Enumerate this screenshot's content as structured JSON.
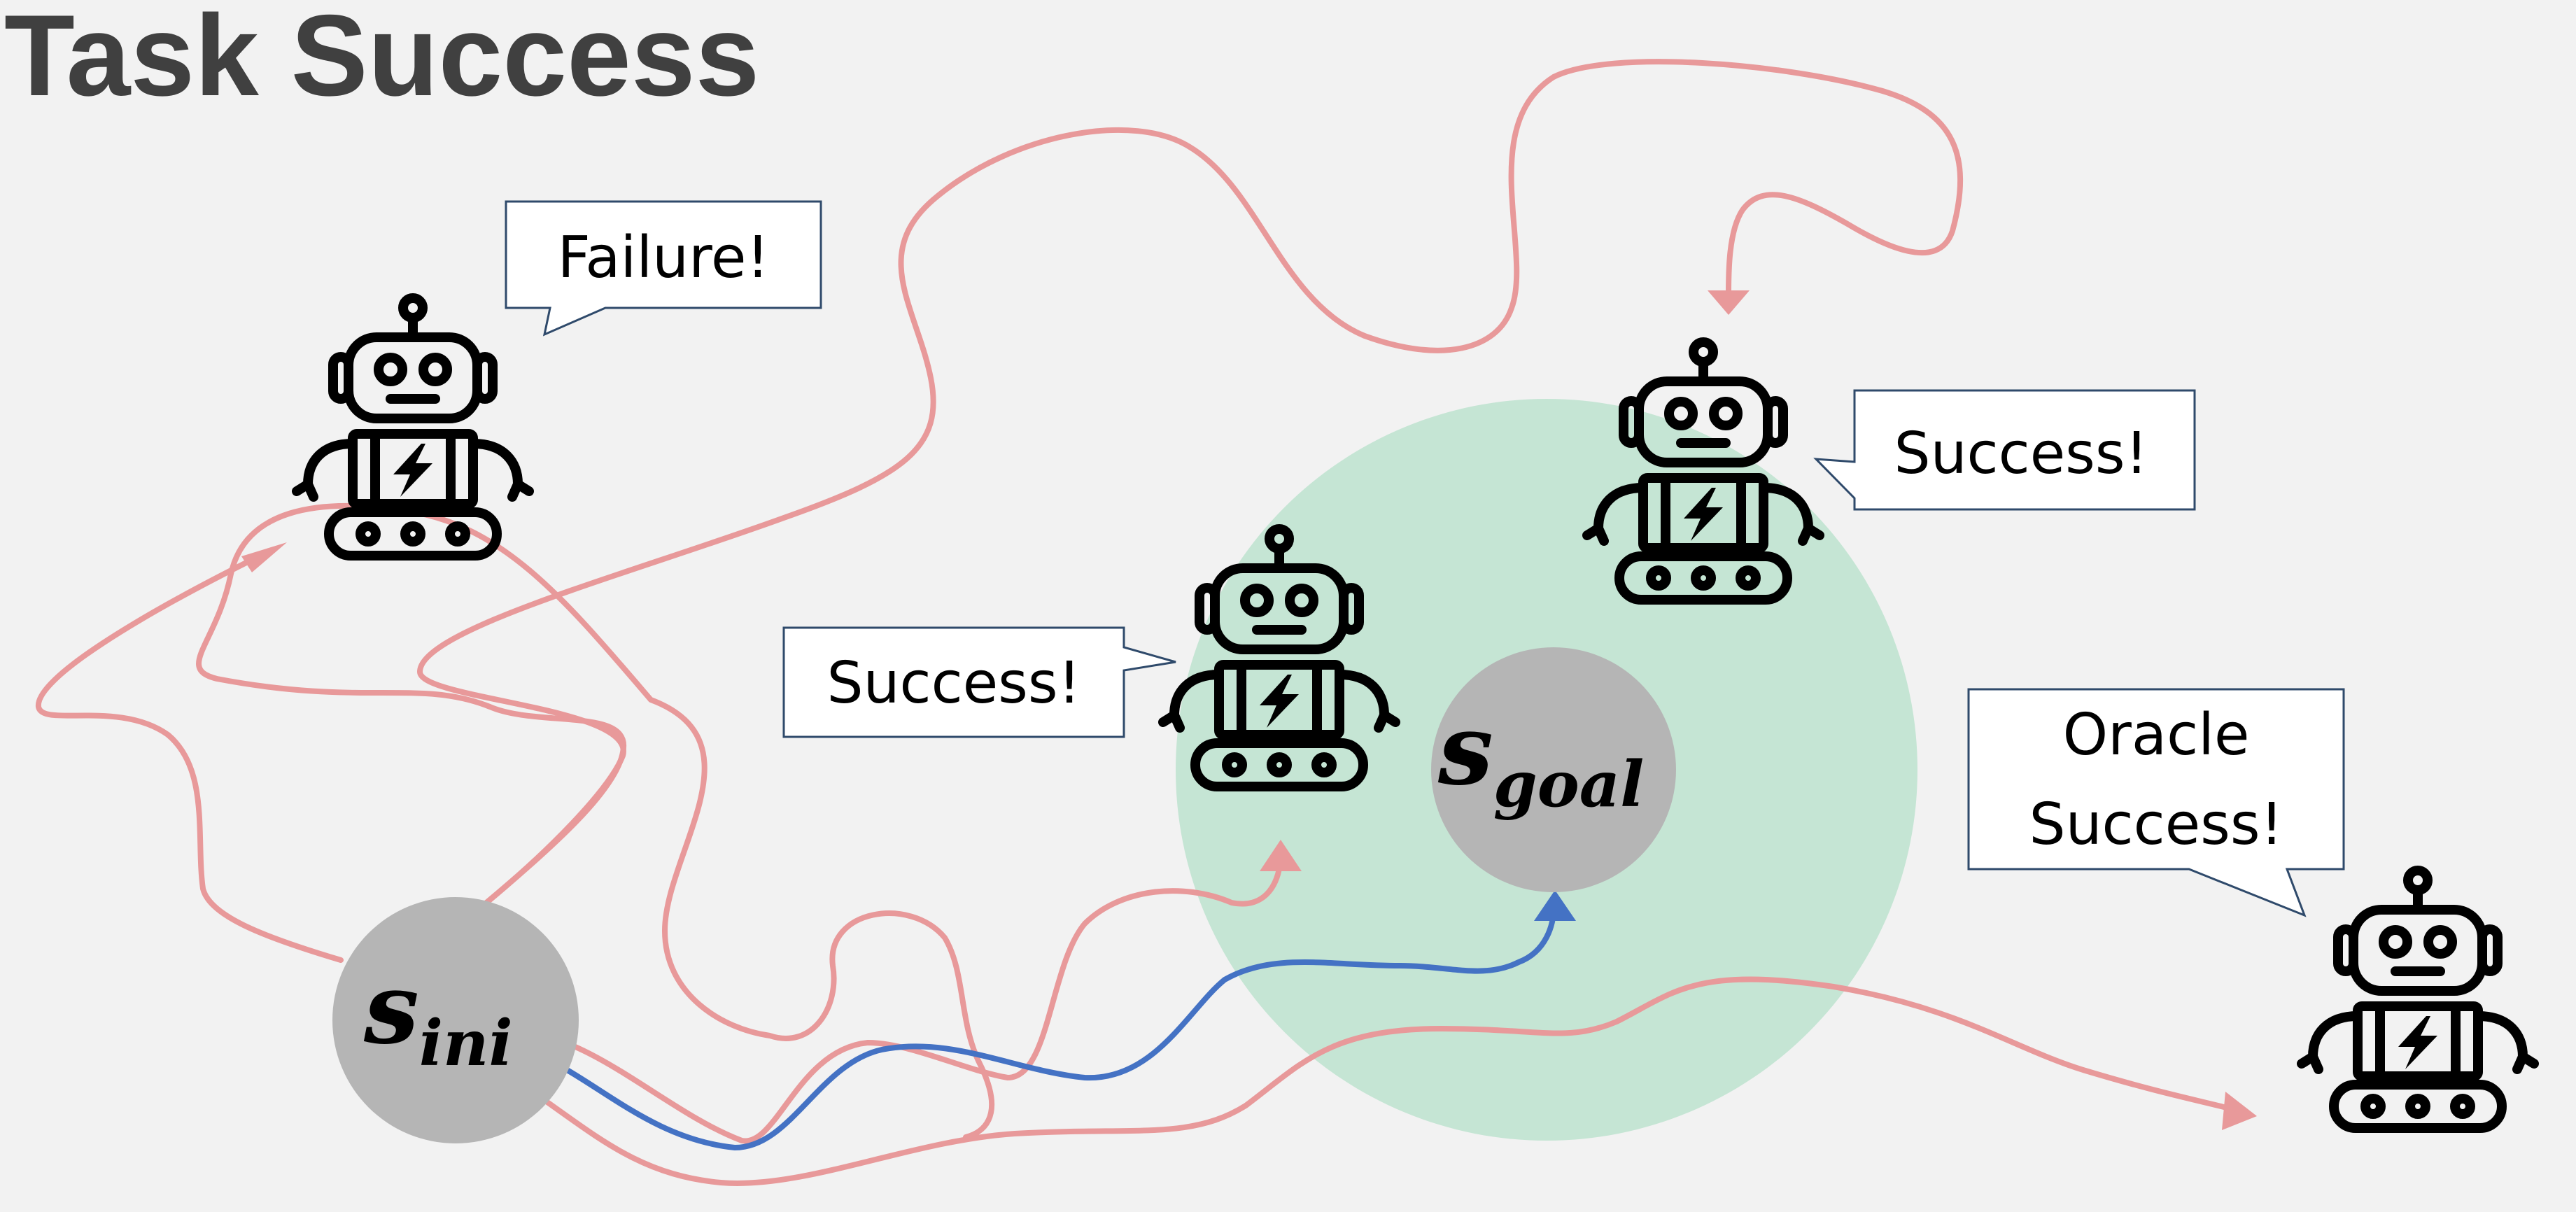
{
  "title": "Task Success",
  "colors": {
    "background": "#f2f2f2",
    "failure_path": "#e8999a",
    "optimal_path": "#4472c4",
    "success_region": "#c5e5d4",
    "state_node": "#b5b5b5"
  },
  "states": {
    "initial": {
      "base": "s",
      "subscript": "ini"
    },
    "goal": {
      "base": "s",
      "subscript": "goal"
    }
  },
  "bubbles": {
    "failure": "Failure!",
    "success_top": "Success!",
    "success_middle": "Success!",
    "oracle_line1": "Oracle",
    "oracle_line2": "Success!"
  },
  "icons": {
    "robot": "robot-icon",
    "arrowhead": "arrowhead-icon"
  }
}
